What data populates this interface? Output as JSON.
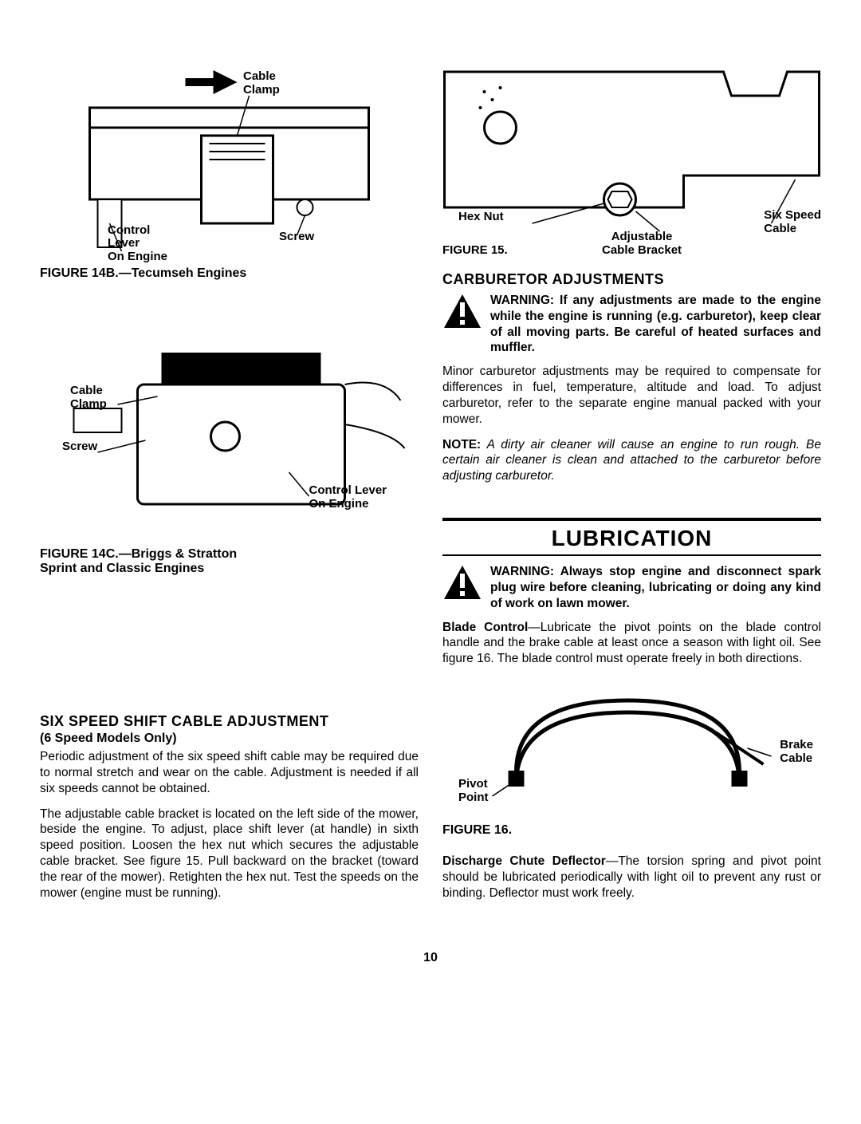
{
  "left": {
    "fig14b": {
      "caption": "FIGURE 14B.—Tecumseh Engines",
      "labels": {
        "cable_clamp": "Cable\nClamp",
        "control_lever": "Control\nLever\nOn Engine",
        "screw": "Screw",
        "arrow": "➡"
      }
    },
    "fig14c": {
      "caption": "FIGURE 14C.—Briggs & Stratton\nSprint and Classic Engines",
      "labels": {
        "cable_clamp": "Cable\nClamp",
        "screw": "Screw",
        "control_lever": "Control Lever\nOn Engine"
      }
    },
    "six_speed": {
      "title": "SIX SPEED SHIFT CABLE ADJUSTMENT",
      "subtitle": "(6 Speed Models Only)",
      "p1": "Periodic adjustment of the six speed shift cable may be required due to normal stretch and wear on the cable. Adjustment is needed if all six speeds cannot be obtained.",
      "p2": "The adjustable cable bracket is located on the left side of the mower, beside the engine. To adjust, place shift lever (at handle) in sixth speed position. Loosen the hex nut which secures the adjustable cable bracket. See figure 15. Pull backward on the bracket (toward the rear of the mower). Retighten the hex nut. Test the speeds on the mower (engine must be running)."
    }
  },
  "right": {
    "fig15": {
      "caption": "FIGURE 15.",
      "labels": {
        "hex_nut": "Hex Nut",
        "adjustable": "Adjustable\nCable Bracket",
        "six_speed_cable": "Six Speed\nCable"
      }
    },
    "carb": {
      "title": "CARBURETOR ADJUSTMENTS",
      "warning": "WARNING: If any adjustments are made to the engine while the engine is running (e.g. carburetor), keep clear of all moving parts. Be careful of heated surfaces and muffler.",
      "p1": "Minor carburetor adjustments may be required to compensate for differences in fuel, temperature, altitude and load. To adjust carburetor, refer to the separate engine manual packed with your mower.",
      "note_label": "NOTE:",
      "note": " A dirty air cleaner will cause an engine to run rough. Be certain air cleaner is clean and attached to the carburetor before adjusting carburetor."
    },
    "lub": {
      "title": "LUBRICATION",
      "warning": "WARNING: Always stop engine and dis­connect spark plug wire before cleaning, lubricating or doing any kind of work on lawn mower.",
      "blade_label": "Blade Control",
      "blade_text": "—Lubricate the pivot points on the blade control handle and the brake cable at least once a season with light oil. See figure 16. The blade control must operate freely in both directions.",
      "fig16_caption": "FIGURE 16.",
      "fig16_labels": {
        "pivot": "Pivot\nPoint",
        "brake": "Brake\nCable"
      },
      "discharge_label": "Discharge Chute Deflector",
      "discharge_text": "—The torsion spring and pivot point should be lubricated periodically with light oil to prevent any rust or binding. Deflector must work freely."
    }
  },
  "page_number": "10",
  "colors": {
    "text": "#000000",
    "bg": "#ffffff"
  }
}
